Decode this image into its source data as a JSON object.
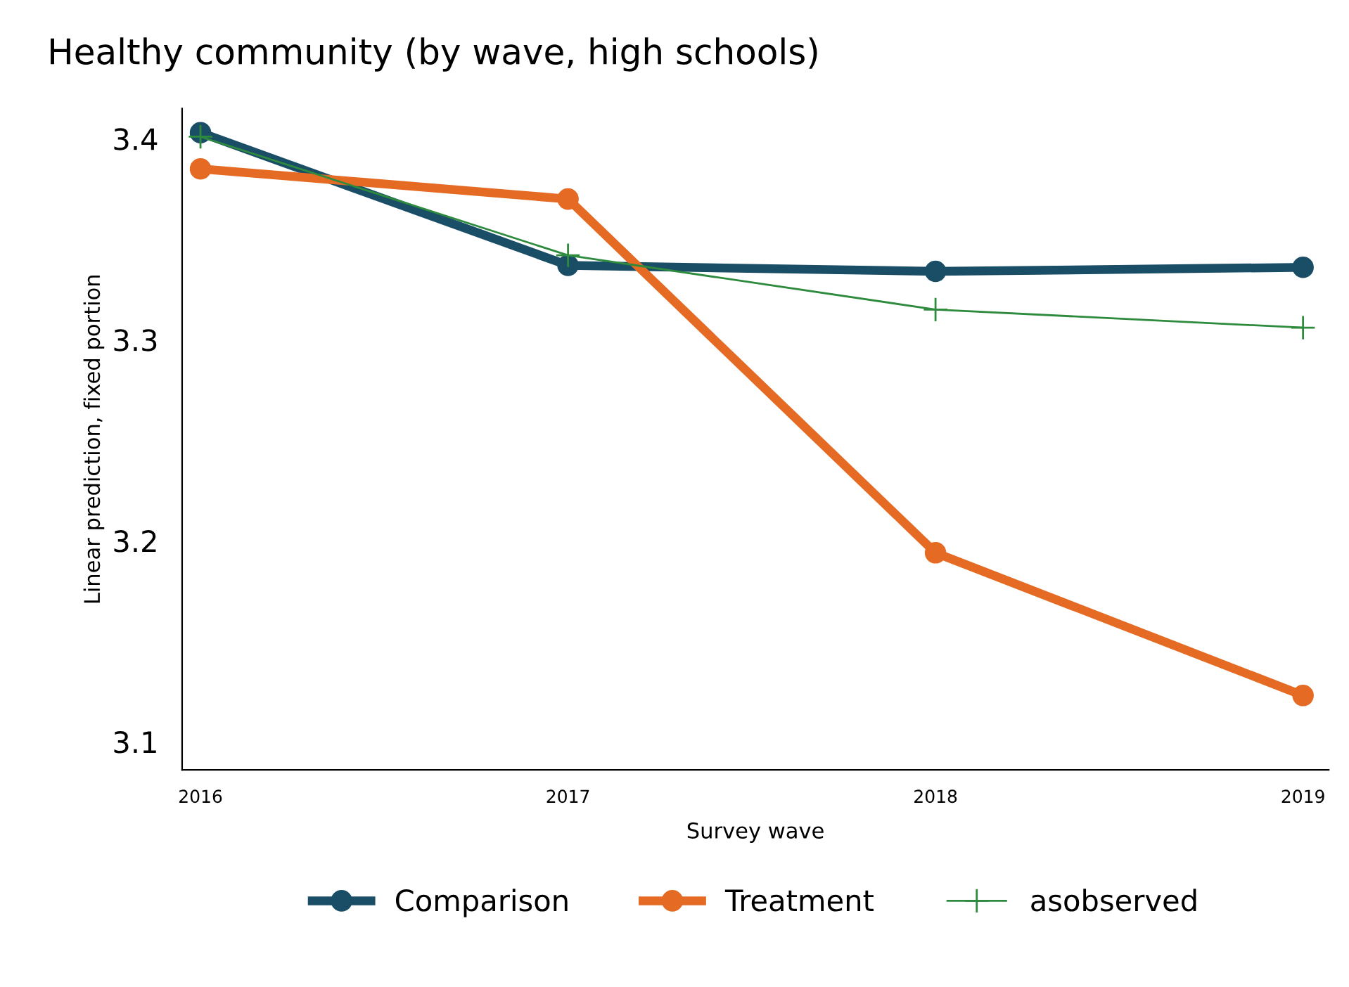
{
  "chart_data": {
    "type": "line",
    "title": "Healthy community (by wave, high schools)",
    "xlabel": "Survey wave",
    "ylabel": "Linear prediction, fixed portion",
    "x": [
      2016,
      2017,
      2018,
      2019
    ],
    "series": [
      {
        "name": "Comparison",
        "color": "#1a4d66",
        "values": [
          3.403,
          3.337,
          3.334,
          3.336
        ],
        "marker": "circle"
      },
      {
        "name": "Treatment",
        "color": "#e56b24",
        "values": [
          3.385,
          3.37,
          3.194,
          3.123
        ],
        "marker": "circle"
      },
      {
        "name": "asobserved",
        "color": "#2e8b3e",
        "values": [
          3.401,
          3.342,
          3.315,
          3.306
        ],
        "marker": "cross"
      }
    ],
    "xlim": [
      2015.95,
      2019.07
    ],
    "xticks": [
      2016,
      2017,
      2018,
      2019
    ],
    "ylim": [
      3.086,
      3.415
    ],
    "yticks": [
      3.1,
      3.2,
      3.3,
      3.4
    ],
    "grid": false,
    "legend": "bottom"
  }
}
